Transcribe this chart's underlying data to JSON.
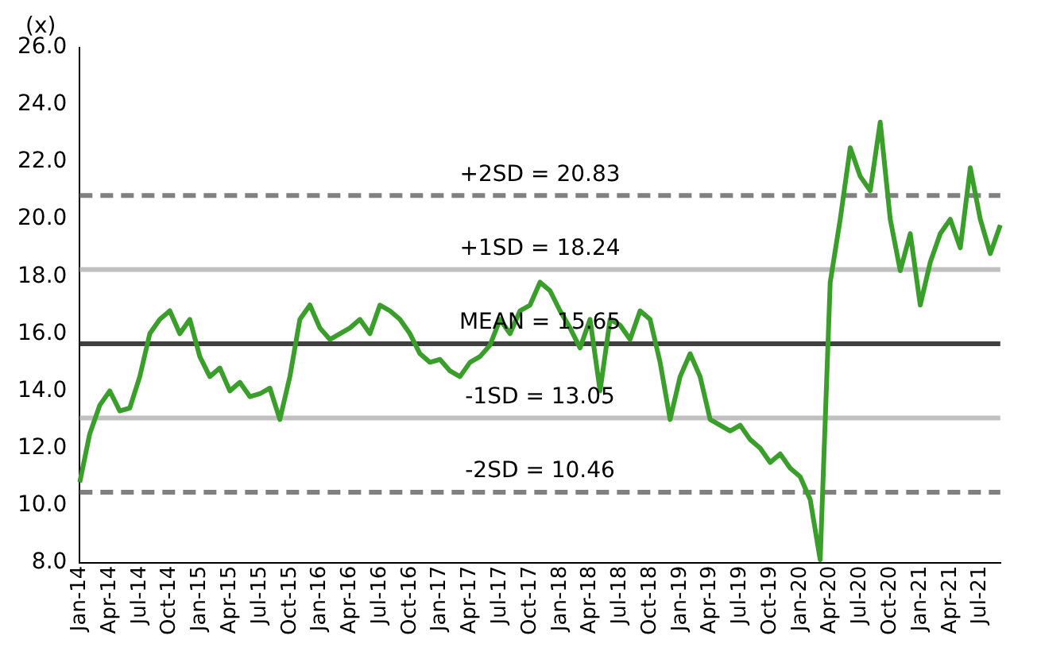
{
  "chart_data": {
    "type": "line",
    "ylabel": "(x)",
    "categories": [
      "Jan-14",
      null,
      null,
      "Apr-14",
      null,
      null,
      "Jul-14",
      null,
      null,
      "Oct-14",
      null,
      null,
      "Jan-15",
      null,
      null,
      "Apr-15",
      null,
      null,
      "Jul-15",
      null,
      null,
      "Oct-15",
      null,
      null,
      "Jan-16",
      null,
      null,
      "Apr-16",
      null,
      null,
      "Jul-16",
      null,
      null,
      "Oct-16",
      null,
      null,
      "Jan-17",
      null,
      null,
      "Apr-17",
      null,
      null,
      "Jul-17",
      null,
      null,
      "Oct-17",
      null,
      null,
      "Jan-18",
      null,
      null,
      "Apr-18",
      null,
      null,
      "Jul-18",
      null,
      null,
      "Oct-18",
      null,
      null,
      "Jan-19",
      null,
      null,
      "Apr-19",
      null,
      null,
      "Jul-19",
      null,
      null,
      "Oct-19",
      null,
      null,
      "Jan-20",
      null,
      null,
      "Apr-20",
      null,
      null,
      "Jul-20",
      null,
      null,
      "Oct-20",
      null,
      null,
      "Jan-21",
      null,
      null,
      "Apr-21",
      null,
      null,
      "Jul-21",
      null,
      null
    ],
    "series": [
      {
        "color": "#3a9f2a",
        "values": [
          10.8,
          12.5,
          13.5,
          14.0,
          13.3,
          13.4,
          14.5,
          16.0,
          16.5,
          16.8,
          16.0,
          16.5,
          15.2,
          14.5,
          14.8,
          14.0,
          14.3,
          13.8,
          13.9,
          14.1,
          13.0,
          14.5,
          16.5,
          17.0,
          16.2,
          15.8,
          16.0,
          16.2,
          16.5,
          16.0,
          17.0,
          16.8,
          16.5,
          16.0,
          15.3,
          15.0,
          15.1,
          14.7,
          14.5,
          15.0,
          15.2,
          15.6,
          16.5,
          16.0,
          16.8,
          17.0,
          17.8,
          17.5,
          16.8,
          16.2,
          15.5,
          16.5,
          14.0,
          16.5,
          16.3,
          15.8,
          16.8,
          16.5,
          15.0,
          13.0,
          14.5,
          15.3,
          14.5,
          13.0,
          12.8,
          12.6,
          12.8,
          12.3,
          12.0,
          11.5,
          11.8,
          11.3,
          11.0,
          10.2,
          8.1,
          17.8,
          20.0,
          22.5,
          21.5,
          21.0,
          23.4,
          20.0,
          18.2,
          19.5,
          17.0,
          18.5,
          19.5,
          20.0,
          19.0,
          21.8,
          20.0,
          18.8,
          19.8
        ]
      }
    ],
    "ylim": [
      8,
      26
    ],
    "yticks": [
      {
        "value": 8,
        "label": "8.0"
      },
      {
        "value": 10,
        "label": "10.0"
      },
      {
        "value": 12,
        "label": "12.0"
      },
      {
        "value": 14,
        "label": "14.0"
      },
      {
        "value": 16,
        "label": "16.0"
      },
      {
        "value": 18,
        "label": "18.0"
      },
      {
        "value": 20,
        "label": "20.0"
      },
      {
        "value": 22,
        "label": "22.0"
      },
      {
        "value": 24,
        "label": "24.0"
      },
      {
        "value": 26,
        "label": "26.0"
      }
    ],
    "ref_lines": [
      {
        "axis": "y",
        "value": 20.83,
        "label": "+2SD = 20.83",
        "color": "#808080",
        "line_style": "dashed"
      },
      {
        "axis": "y",
        "value": 18.24,
        "label": "+1SD = 18.24",
        "color": "#c0c0c0",
        "line_style": "solid"
      },
      {
        "axis": "y",
        "value": 15.65,
        "label": "MEAN = 15.65",
        "color": "#404040",
        "line_style": "solid"
      },
      {
        "axis": "y",
        "value": 13.05,
        "label": "-1SD = 13.05",
        "color": "#c0c0c0",
        "line_style": "solid"
      },
      {
        "axis": "y",
        "value": 10.46,
        "label": "-2SD = 10.46",
        "color": "#808080",
        "line_style": "dashed"
      }
    ],
    "grid": false,
    "legend": false,
    "marker": "none",
    "line_style": "solid"
  }
}
